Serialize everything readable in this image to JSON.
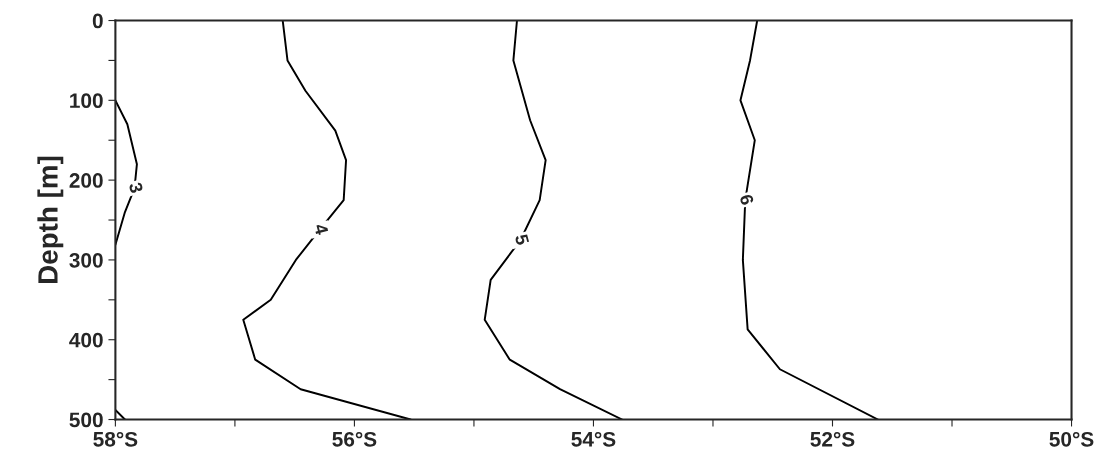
{
  "chart_data": {
    "type": "line",
    "ylabel": "Depth [m]",
    "xlim": [
      -58,
      -50
    ],
    "ylim": [
      500,
      0
    ],
    "xticks": [
      {
        "value": -58,
        "label": "58°S"
      },
      {
        "value": -57,
        "label": null
      },
      {
        "value": -56,
        "label": "56°S"
      },
      {
        "value": -55,
        "label": null
      },
      {
        "value": -54,
        "label": "54°S"
      },
      {
        "value": -53,
        "label": null
      },
      {
        "value": -52,
        "label": "52°S"
      },
      {
        "value": -51,
        "label": null
      },
      {
        "value": -50,
        "label": "50°S"
      }
    ],
    "yticks": [
      0,
      {
        "value": 50,
        "label": null
      },
      100,
      {
        "value": 150,
        "label": null
      },
      200,
      {
        "value": 250,
        "label": null
      },
      300,
      {
        "value": 350,
        "label": null
      },
      400,
      {
        "value": 450,
        "label": null
      },
      500
    ],
    "grid": false,
    "legend": false,
    "line_style": "solid",
    "series": [
      {
        "name": "3",
        "color": "#000000",
        "x": [
          -58.0,
          -57.9,
          -57.82,
          -57.84,
          -57.92,
          -58.0
        ],
        "values": [
          100,
          130,
          180,
          210,
          240,
          281
        ]
      },
      {
        "color": "#000000",
        "x": [
          -58.0,
          -57.92
        ],
        "values": [
          488,
          500
        ]
      },
      {
        "name": "4",
        "color": "#000000",
        "x": [
          -56.6,
          -56.56,
          -56.41,
          -56.16,
          -56.07,
          -56.09,
          -56.29,
          -56.49,
          -56.7,
          -56.93,
          -56.83,
          -56.45,
          -55.53
        ],
        "values": [
          0,
          50,
          88,
          138,
          175,
          225,
          262,
          300,
          350,
          375,
          425,
          462,
          500
        ]
      },
      {
        "name": "5",
        "color": "#000000",
        "x": [
          -54.64,
          -54.67,
          -54.53,
          -54.4,
          -54.45,
          -54.61,
          -54.86,
          -54.91,
          -54.7,
          -54.28,
          -53.76
        ],
        "values": [
          0,
          50,
          125,
          175,
          225,
          275,
          325,
          375,
          425,
          462,
          500
        ]
      },
      {
        "name": "6",
        "color": "#000000",
        "x": [
          -52.63,
          -52.69,
          -52.77,
          -52.65,
          -52.73,
          -52.75,
          -52.71,
          -52.44,
          -51.62
        ],
        "values": [
          0,
          50,
          100,
          150,
          225,
          300,
          387,
          437,
          500
        ]
      }
    ]
  }
}
